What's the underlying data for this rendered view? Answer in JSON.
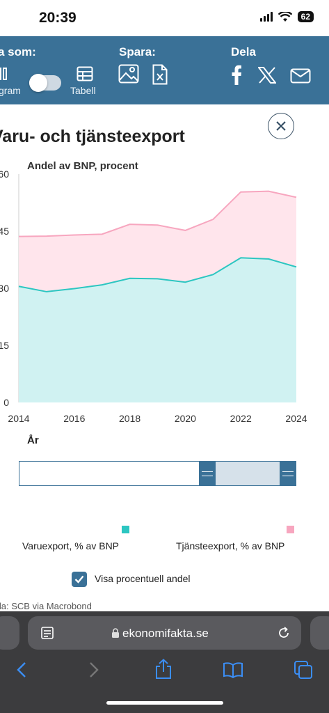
{
  "status": {
    "time": "20:39",
    "battery": "62"
  },
  "toolbar": {
    "show_as_title": "a som:",
    "save_title": "Spara:",
    "share_title": "Dela",
    "diagram_label": "gram",
    "table_label": "Tabell"
  },
  "close_icon": "close-icon",
  "chart_data": {
    "type": "area",
    "title": "Varu- och tjänsteexport",
    "subtitle": "Andel av BNP, procent",
    "xlabel": "År",
    "ylabel": "",
    "x": [
      2014,
      2015,
      2016,
      2017,
      2018,
      2019,
      2020,
      2021,
      2022,
      2023,
      2024
    ],
    "x_ticks": [
      "2014",
      "2016",
      "2018",
      "2020",
      "2022",
      "2024"
    ],
    "y_ticks": [
      "0",
      "15",
      "30",
      "45",
      "60"
    ],
    "ylim": [
      0,
      60
    ],
    "stacked": true,
    "series": [
      {
        "name": "Varuexport, % av BNP",
        "color": "#2cc6c1",
        "fill": "#d0f2f2",
        "values": [
          30.5,
          29.1,
          29.9,
          30.9,
          32.6,
          32.5,
          31.6,
          33.6,
          38.0,
          37.7,
          35.6
        ]
      },
      {
        "name": "Tjänsteexport, % av BNP",
        "color": "#f7a6bf",
        "fill": "#ffe5ec",
        "values": [
          13.1,
          14.6,
          14.1,
          13.3,
          14.2,
          14.1,
          13.6,
          14.5,
          17.3,
          17.8,
          18.3
        ]
      }
    ],
    "legend_position": "bottom"
  },
  "checkbox": {
    "label": "Visa procentuell andel",
    "checked": true
  },
  "source": "lla: SCB via Macrobond",
  "browser": {
    "url": "ekonomifakta.se"
  }
}
